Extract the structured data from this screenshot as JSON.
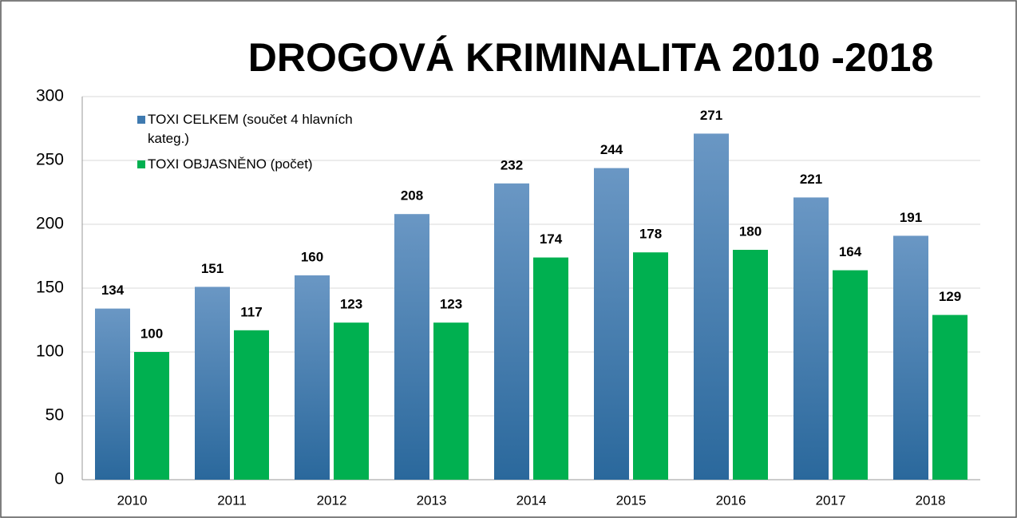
{
  "chart_data": {
    "type": "bar",
    "title": "DROGOVÁ KRIMINALITA 2010 -2018",
    "categories": [
      "2010",
      "2011",
      "2012",
      "2013",
      "2014",
      "2015",
      "2016",
      "2017",
      "2018"
    ],
    "series": [
      {
        "name": "TOXI CELKEM (součet 4 hlavních kateg.)",
        "color": "#3f7ab0",
        "values": [
          134,
          151,
          160,
          208,
          232,
          244,
          271,
          221,
          191
        ]
      },
      {
        "name": "TOXI OBJASNĚNO (počet)",
        "color": "#00b050",
        "values": [
          100,
          117,
          123,
          123,
          174,
          178,
          180,
          164,
          129
        ]
      }
    ],
    "ylim": [
      0,
      300
    ],
    "yticks": [
      0,
      50,
      100,
      150,
      200,
      250,
      300
    ],
    "grid": true,
    "legend": "top-left"
  }
}
